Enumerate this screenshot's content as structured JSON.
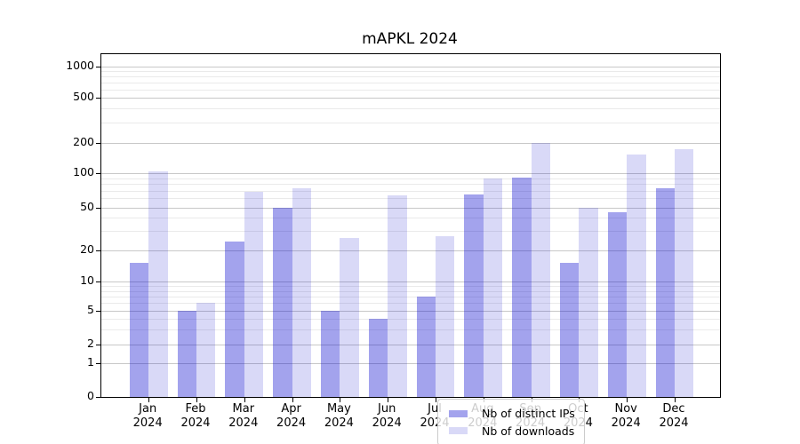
{
  "title": "mAPKL 2024",
  "chart_data": {
    "type": "bar",
    "title": "mAPKL 2024",
    "months": [
      "Jan",
      "Feb",
      "Mar",
      "Apr",
      "May",
      "Jun",
      "Jul",
      "Aug",
      "Sep",
      "Oct",
      "Nov",
      "Dec"
    ],
    "year": "2024",
    "series": [
      {
        "name": "Nb of distinct IPs",
        "color": "rgba(0,0,204,0.36)",
        "values": [
          15,
          5,
          24,
          50,
          5,
          4,
          7,
          65,
          91,
          15,
          45,
          73
        ]
      },
      {
        "name": "Nb of downloads",
        "color": "rgba(0,0,204,0.15)",
        "values": [
          105,
          6,
          69,
          73,
          26,
          64,
          27,
          90,
          200,
          50,
          153,
          172
        ]
      }
    ],
    "y_axis": {
      "scale": "symlog",
      "tick_values": [
        0,
        1,
        2,
        5,
        10,
        20,
        50,
        100,
        200,
        500,
        1000
      ],
      "tick_labels": [
        "0",
        "1",
        "2",
        "5",
        "10",
        "20",
        "50",
        "100",
        "200",
        "500",
        "1000"
      ],
      "minor_tick_values": [
        3,
        4,
        6,
        7,
        8,
        9,
        30,
        40,
        60,
        70,
        80,
        90,
        300,
        400,
        600,
        700,
        800,
        900
      ],
      "range": [
        0,
        1300
      ]
    },
    "grid": true,
    "legend_position": "lower center"
  },
  "colors": {
    "major_grid": "#c8c8c8",
    "minor_grid": "#eaeaea",
    "spine": "#000000",
    "text": "#000000",
    "legend_border": "#cccccc",
    "legend_bg": "rgba(255,255,255,0.8)"
  }
}
